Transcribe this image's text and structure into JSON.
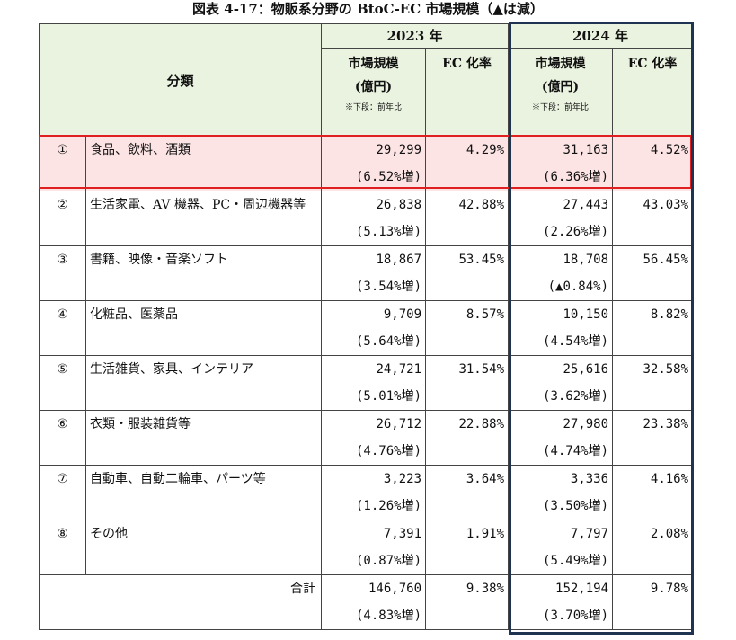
{
  "title": "図表 4-17：物販系分野の BtoC-EC 市場規模（▲は減）",
  "header": {
    "category": "分類",
    "year2023": "2023 年",
    "year2024": "2024 年",
    "market_size": "市場規模",
    "unit": "(億円)",
    "note": "※下段：前年比",
    "ec_rate": "EC 化率"
  },
  "rows": [
    {
      "no": "①",
      "category": "食品、飲料、酒類",
      "m2023": "29,299",
      "g2023": "(6.52%増)",
      "ec2023": "4.29%",
      "m2024": "31,163",
      "g2024": "(6.36%増)",
      "ec2024": "4.52%"
    },
    {
      "no": "②",
      "category": "生活家電、AV 機器、PC・周辺機器等",
      "m2023": "26,838",
      "g2023": "(5.13%増)",
      "ec2023": "42.88%",
      "m2024": "27,443",
      "g2024": "(2.26%増)",
      "ec2024": "43.03%"
    },
    {
      "no": "③",
      "category": "書籍、映像・音楽ソフト",
      "m2023": "18,867",
      "g2023": "(3.54%増)",
      "ec2023": "53.45%",
      "m2024": "18,708",
      "g2024": "(▲0.84%)",
      "ec2024": "56.45%"
    },
    {
      "no": "④",
      "category": "化粧品、医薬品",
      "m2023": "9,709",
      "g2023": "(5.64%増)",
      "ec2023": "8.57%",
      "m2024": "10,150",
      "g2024": "(4.54%増)",
      "ec2024": "8.82%"
    },
    {
      "no": "⑤",
      "category": "生活雑貨、家具、インテリア",
      "m2023": "24,721",
      "g2023": "(5.01%増)",
      "ec2023": "31.54%",
      "m2024": "25,616",
      "g2024": "(3.62%増)",
      "ec2024": "32.58%"
    },
    {
      "no": "⑥",
      "category": "衣類・服装雑貨等",
      "m2023": "26,712",
      "g2023": "(4.76%増)",
      "ec2023": "22.88%",
      "m2024": "27,980",
      "g2024": "(4.74%増)",
      "ec2024": "23.38%"
    },
    {
      "no": "⑦",
      "category": "自動車、自動二輪車、パーツ等",
      "m2023": "3,223",
      "g2023": "(1.26%増)",
      "ec2023": "3.64%",
      "m2024": "3,336",
      "g2024": "(3.50%増)",
      "ec2024": "4.16%"
    },
    {
      "no": "⑧",
      "category": "その他",
      "m2023": "7,391",
      "g2023": "(0.87%増)",
      "ec2023": "1.91%",
      "m2024": "7,797",
      "g2024": "(5.49%増)",
      "ec2024": "2.08%"
    }
  ],
  "total": {
    "label": "合計",
    "m2023": "146,760",
    "g2023": "(4.83%増)",
    "ec2023": "9.38%",
    "m2024": "152,194",
    "g2024": "(3.70%増)",
    "ec2024": "9.78%"
  }
}
